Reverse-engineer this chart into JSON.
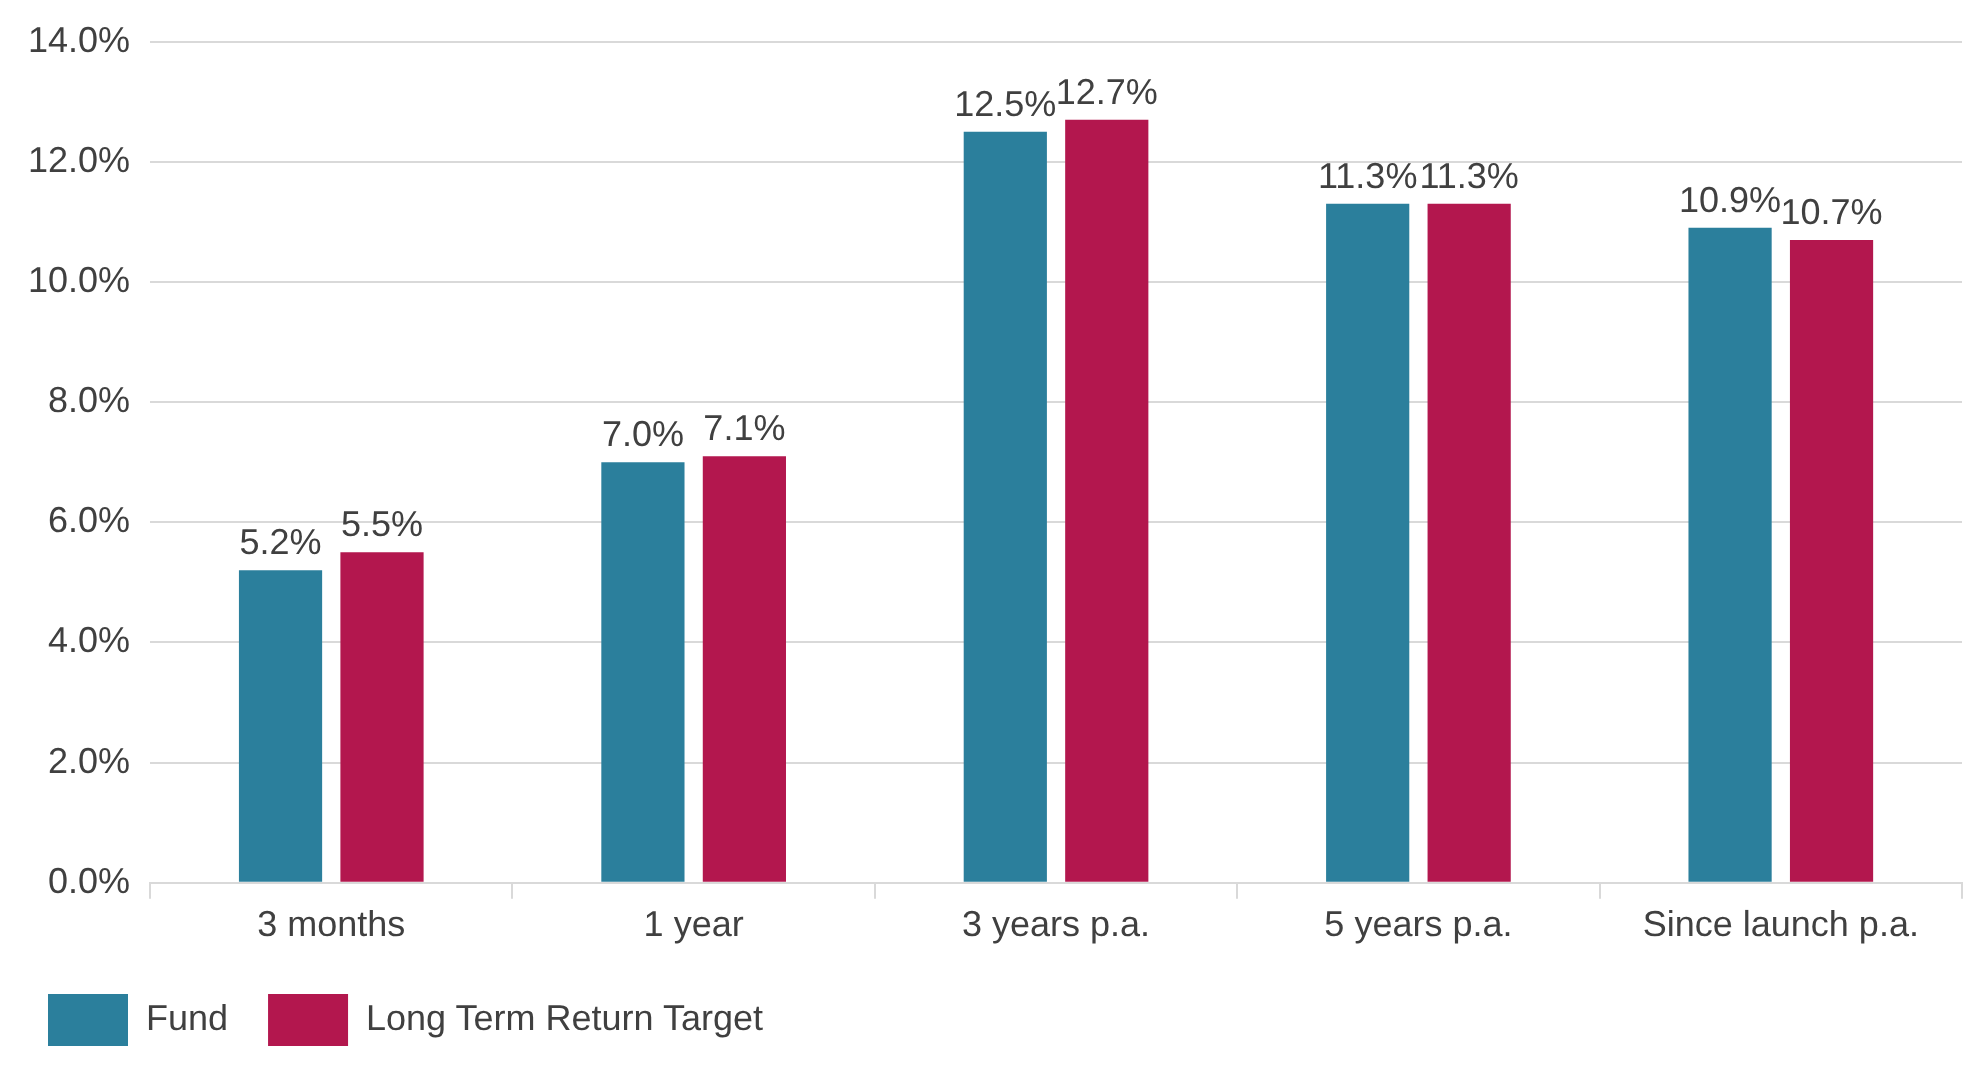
{
  "chart_data": {
    "type": "bar",
    "categories": [
      "3 months",
      "1 year",
      "3 years p.a.",
      "5 years p.a.",
      "Since launch p.a."
    ],
    "series": [
      {
        "name": "Fund",
        "color": "#2b7f9c",
        "values": [
          5.2,
          7.0,
          12.5,
          11.3,
          10.9
        ],
        "value_labels": [
          "5.2%",
          "7.0%",
          "12.5%",
          "11.3%",
          "10.9%"
        ]
      },
      {
        "name": "Long Term Return Target",
        "color": "#b3174e",
        "values": [
          5.5,
          7.1,
          12.7,
          11.3,
          10.7
        ],
        "value_labels": [
          "5.5%",
          "7.1%",
          "12.7%",
          "11.3%",
          "10.7%"
        ]
      }
    ],
    "ylim": [
      0,
      14
    ],
    "yticks": [
      {
        "value": 0,
        "label": "0.0%"
      },
      {
        "value": 2,
        "label": "2.0%"
      },
      {
        "value": 4,
        "label": "4.0%"
      },
      {
        "value": 6,
        "label": "6.0%"
      },
      {
        "value": 8,
        "label": "8.0%"
      },
      {
        "value": 10,
        "label": "10.0%"
      },
      {
        "value": 12,
        "label": "12.0%"
      },
      {
        "value": 14,
        "label": "14.0%"
      }
    ],
    "grid": "y",
    "legend": "bottom left"
  }
}
